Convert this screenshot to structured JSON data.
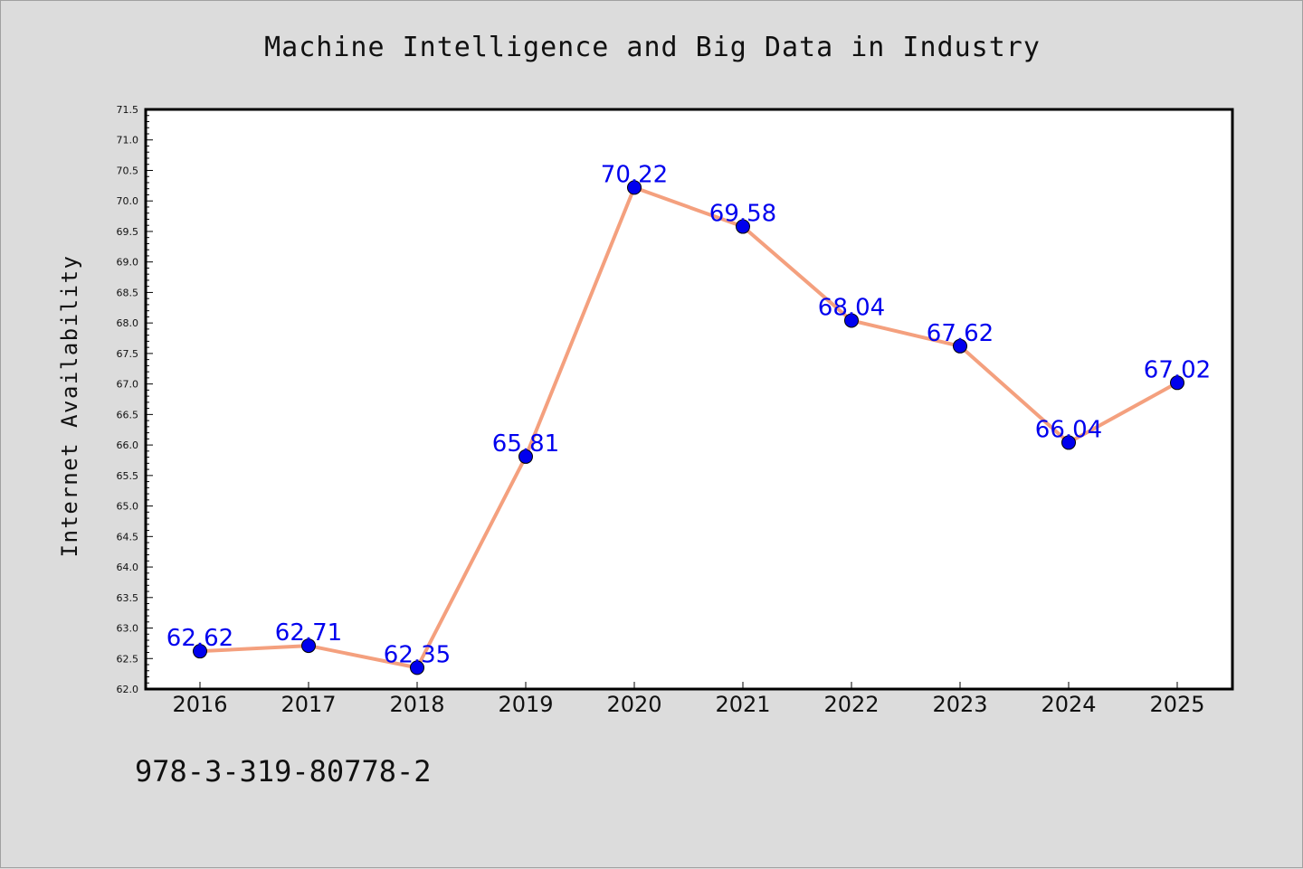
{
  "chart_data": {
    "type": "line",
    "title": "Machine Intelligence and Big Data in Industry",
    "xlabel": "",
    "ylabel": "Internet Availability",
    "categories": [
      "2016",
      "2017",
      "2018",
      "2019",
      "2020",
      "2021",
      "2022",
      "2023",
      "2024",
      "2025"
    ],
    "series": [
      {
        "values": [
          62.62,
          62.71,
          62.35,
          65.81,
          70.22,
          69.58,
          68.04,
          67.62,
          66.04,
          67.02
        ]
      }
    ],
    "data_labels": [
      "62.62",
      "62.71",
      "62.35",
      "65.81",
      "70.22",
      "69.58",
      "68.04",
      "67.62",
      "66.04",
      "67.02"
    ],
    "ylim": [
      62.0,
      71.5
    ],
    "yticks": [
      "62.0",
      "62.5",
      "63.0",
      "63.5",
      "64.0",
      "64.5",
      "65.0",
      "65.5",
      "66.0",
      "66.5",
      "67.0",
      "67.5",
      "68.0",
      "68.5",
      "69.0",
      "69.5",
      "70.0",
      "70.5",
      "71.0",
      "71.5"
    ],
    "grid": false,
    "line_color": "#f4a07e",
    "marker_color": "#0000ee",
    "label_color": "#0000ee"
  },
  "footer": {
    "isbn": "978-3-319-80778-2"
  }
}
